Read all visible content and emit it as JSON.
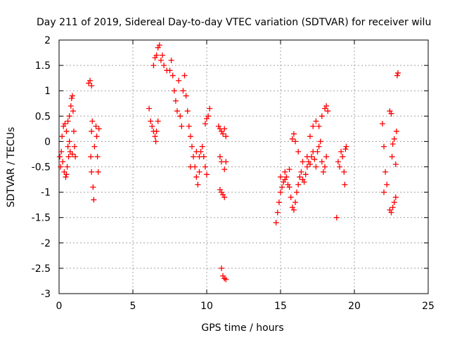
{
  "chart_data": {
    "type": "scatter",
    "title": "Day 211 of 2019, Sidereal Day-to-day VTEC variation (SDTVAR) for receiver wilu",
    "xlabel": "GPS time / hours",
    "ylabel": "SDTVAR / TECUs",
    "xlim": [
      0,
      25
    ],
    "ylim": [
      -3,
      2
    ],
    "xticks": [
      0,
      5,
      10,
      15,
      20,
      25
    ],
    "yticks": [
      -3,
      -2.5,
      -2,
      -1.5,
      -1,
      -0.5,
      0,
      0.5,
      1,
      1.5,
      2
    ],
    "xtick_labels": [
      "0",
      "5",
      "10",
      "15",
      "20",
      "25"
    ],
    "ytick_labels": [
      "-3",
      "-2.5",
      "-2",
      "-1.5",
      "-1",
      "-0.5",
      "0",
      "0.5",
      "1",
      "1.5",
      "2"
    ],
    "grid": true,
    "marker": "+",
    "color": "#ff0000",
    "series": [
      {
        "name": "SDTVAR",
        "points": [
          [
            0.05,
            -0.3
          ],
          [
            0.1,
            -0.5
          ],
          [
            0.15,
            -0.2
          ],
          [
            0.2,
            0.1
          ],
          [
            0.25,
            -0.4
          ],
          [
            0.3,
            0.3
          ],
          [
            0.35,
            -0.6
          ],
          [
            0.4,
            0.35
          ],
          [
            0.45,
            -0.7
          ],
          [
            0.5,
            0.2
          ],
          [
            0.55,
            -0.5
          ],
          [
            0.6,
            0.4
          ],
          [
            0.65,
            -0.3
          ],
          [
            0.7,
            0.5
          ],
          [
            0.75,
            -0.2
          ],
          [
            0.8,
            0.7
          ],
          [
            0.85,
            0.85
          ],
          [
            0.9,
            0.9
          ],
          [
            0.95,
            0.6
          ],
          [
            1.0,
            0.2
          ],
          [
            1.05,
            -0.1
          ],
          [
            1.1,
            -0.3
          ],
          [
            0.9,
            -0.25
          ],
          [
            0.7,
            0.0
          ],
          [
            0.6,
            -0.1
          ],
          [
            0.5,
            -0.65
          ],
          [
            2.0,
            1.15
          ],
          [
            2.1,
            1.2
          ],
          [
            2.2,
            1.1
          ],
          [
            2.25,
            0.4
          ],
          [
            2.2,
            0.2
          ],
          [
            2.15,
            -0.3
          ],
          [
            2.2,
            -0.6
          ],
          [
            2.3,
            -0.9
          ],
          [
            2.35,
            -1.15
          ],
          [
            2.4,
            -0.1
          ],
          [
            2.5,
            0.3
          ],
          [
            2.55,
            0.1
          ],
          [
            2.6,
            -0.3
          ],
          [
            2.65,
            -0.6
          ],
          [
            2.7,
            0.25
          ],
          [
            6.1,
            0.65
          ],
          [
            6.2,
            0.4
          ],
          [
            6.3,
            0.3
          ],
          [
            6.4,
            0.2
          ],
          [
            6.5,
            0.1
          ],
          [
            6.55,
            0.0
          ],
          [
            6.6,
            0.2
          ],
          [
            6.7,
            0.4
          ],
          [
            6.4,
            1.5
          ],
          [
            6.5,
            1.65
          ],
          [
            6.6,
            1.7
          ],
          [
            6.7,
            1.85
          ],
          [
            6.8,
            1.9
          ],
          [
            6.9,
            1.6
          ],
          [
            7.0,
            1.7
          ],
          [
            7.1,
            1.5
          ],
          [
            7.3,
            1.4
          ],
          [
            7.5,
            1.4
          ],
          [
            7.6,
            1.6
          ],
          [
            7.7,
            1.3
          ],
          [
            7.8,
            1.0
          ],
          [
            7.9,
            0.8
          ],
          [
            8.0,
            0.6
          ],
          [
            8.1,
            1.2
          ],
          [
            8.2,
            0.5
          ],
          [
            8.3,
            0.3
          ],
          [
            8.4,
            1.0
          ],
          [
            8.5,
            1.3
          ],
          [
            8.6,
            0.9
          ],
          [
            8.7,
            0.6
          ],
          [
            8.8,
            0.3
          ],
          [
            8.9,
            0.1
          ],
          [
            9.0,
            -0.1
          ],
          [
            9.1,
            -0.3
          ],
          [
            9.2,
            -0.5
          ],
          [
            9.3,
            -0.7
          ],
          [
            9.4,
            -0.85
          ],
          [
            9.5,
            -0.6
          ],
          [
            9.6,
            -0.2
          ],
          [
            9.7,
            -0.1
          ],
          [
            9.8,
            -0.3
          ],
          [
            9.9,
            -0.5
          ],
          [
            10.0,
            -0.65
          ],
          [
            9.5,
            -0.3
          ],
          [
            9.3,
            -0.2
          ],
          [
            8.9,
            -0.5
          ],
          [
            9.9,
            0.35
          ],
          [
            10.0,
            0.45
          ],
          [
            10.1,
            0.5
          ],
          [
            10.2,
            0.65
          ],
          [
            10.8,
            0.3
          ],
          [
            10.9,
            0.25
          ],
          [
            11.0,
            0.2
          ],
          [
            11.1,
            0.15
          ],
          [
            11.2,
            0.25
          ],
          [
            11.3,
            0.1
          ],
          [
            10.9,
            -0.3
          ],
          [
            11.0,
            -0.4
          ],
          [
            11.2,
            -0.55
          ],
          [
            11.3,
            -0.4
          ],
          [
            10.9,
            -0.95
          ],
          [
            11.0,
            -1.0
          ],
          [
            11.1,
            -1.05
          ],
          [
            11.2,
            -1.1
          ],
          [
            11.0,
            -2.5
          ],
          [
            11.1,
            -2.65
          ],
          [
            11.2,
            -2.7
          ],
          [
            11.3,
            -2.72
          ],
          [
            14.7,
            -1.6
          ],
          [
            14.8,
            -1.4
          ],
          [
            14.9,
            -1.2
          ],
          [
            15.0,
            -1.0
          ],
          [
            15.1,
            -0.9
          ],
          [
            15.2,
            -0.8
          ],
          [
            15.3,
            -0.75
          ],
          [
            15.4,
            -0.7
          ],
          [
            15.5,
            -0.85
          ],
          [
            15.6,
            -0.9
          ],
          [
            15.7,
            -1.1
          ],
          [
            15.8,
            -1.3
          ],
          [
            15.9,
            -1.35
          ],
          [
            16.0,
            -1.2
          ],
          [
            16.1,
            -1.0
          ],
          [
            16.2,
            -0.85
          ],
          [
            16.3,
            -0.7
          ],
          [
            16.4,
            -0.6
          ],
          [
            16.5,
            -0.75
          ],
          [
            16.6,
            -0.8
          ],
          [
            16.7,
            -0.65
          ],
          [
            16.8,
            -0.5
          ],
          [
            16.9,
            -0.4
          ],
          [
            17.0,
            -0.45
          ],
          [
            17.1,
            -0.3
          ],
          [
            17.2,
            -0.2
          ],
          [
            17.3,
            -0.35
          ],
          [
            17.4,
            -0.5
          ],
          [
            17.5,
            -0.2
          ],
          [
            17.6,
            -0.1
          ],
          [
            17.7,
            0.0
          ],
          [
            17.8,
            -0.4
          ],
          [
            17.9,
            -0.6
          ],
          [
            18.0,
            -0.5
          ],
          [
            18.1,
            -0.3
          ],
          [
            15.0,
            -0.7
          ],
          [
            15.3,
            -0.6
          ],
          [
            15.6,
            -0.55
          ],
          [
            15.8,
            0.05
          ],
          [
            15.9,
            0.15
          ],
          [
            16.0,
            0.0
          ],
          [
            16.2,
            -0.2
          ],
          [
            16.5,
            -0.4
          ],
          [
            16.8,
            -0.3
          ],
          [
            17.0,
            0.1
          ],
          [
            17.2,
            0.3
          ],
          [
            17.4,
            0.4
          ],
          [
            17.6,
            0.3
          ],
          [
            17.8,
            0.5
          ],
          [
            18.0,
            0.65
          ],
          [
            18.1,
            0.7
          ],
          [
            18.2,
            0.6
          ],
          [
            18.8,
            -1.5
          ],
          [
            19.1,
            -0.2
          ],
          [
            19.2,
            -0.3
          ],
          [
            19.3,
            -0.6
          ],
          [
            19.35,
            -0.85
          ],
          [
            19.4,
            -0.15
          ],
          [
            19.45,
            -0.1
          ],
          [
            18.9,
            -0.4
          ],
          [
            19.0,
            -0.5
          ],
          [
            21.9,
            0.35
          ],
          [
            22.0,
            -0.1
          ],
          [
            22.1,
            -0.6
          ],
          [
            22.2,
            -0.85
          ],
          [
            22.0,
            -1.0
          ],
          [
            22.4,
            0.6
          ],
          [
            22.5,
            0.55
          ],
          [
            22.6,
            -0.05
          ],
          [
            22.55,
            -0.3
          ],
          [
            22.4,
            -1.35
          ],
          [
            22.5,
            -1.4
          ],
          [
            22.6,
            -1.3
          ],
          [
            22.7,
            -1.2
          ],
          [
            22.8,
            -1.1
          ],
          [
            22.85,
            0.2
          ],
          [
            22.8,
            -0.45
          ],
          [
            22.9,
            1.3
          ],
          [
            22.95,
            1.35
          ],
          [
            22.7,
            0.05
          ]
        ]
      }
    ]
  }
}
